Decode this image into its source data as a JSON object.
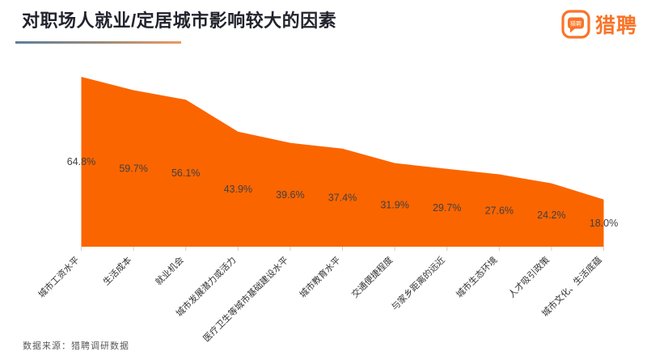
{
  "header": {
    "title": "对职场人就业/定居城市影响较大的因素"
  },
  "logo": {
    "icon_text": "猎聘",
    "brand_text": "猎聘",
    "color": "#f97428"
  },
  "footer": {
    "source": "数据来源：猎聘调研数据"
  },
  "chart_data": {
    "type": "area",
    "title": "对职场人就业/定居城市影响较大的因素",
    "categories": [
      "城市工资水平",
      "生活成本",
      "就业机会",
      "城市发展潜力或活力",
      "医疗卫生等城市基础建设水平",
      "城市教育水平",
      "交通便捷程度",
      "与家乡距离的远近",
      "城市生态环境",
      "人才吸引政策",
      "城市文化、生活底蕴"
    ],
    "values": [
      64.8,
      59.7,
      56.1,
      43.9,
      39.6,
      37.4,
      31.9,
      29.7,
      27.6,
      24.2,
      18.0
    ],
    "unit": "%",
    "xlabel": "",
    "ylabel": "",
    "ylim": [
      0,
      75
    ],
    "grid": "off",
    "legend": "none",
    "label_position": "inside-middle",
    "area_color": "#fb6500",
    "value_label_color": "#404040",
    "axis_label_color": "#333333",
    "tick_color": "#cccccc"
  }
}
